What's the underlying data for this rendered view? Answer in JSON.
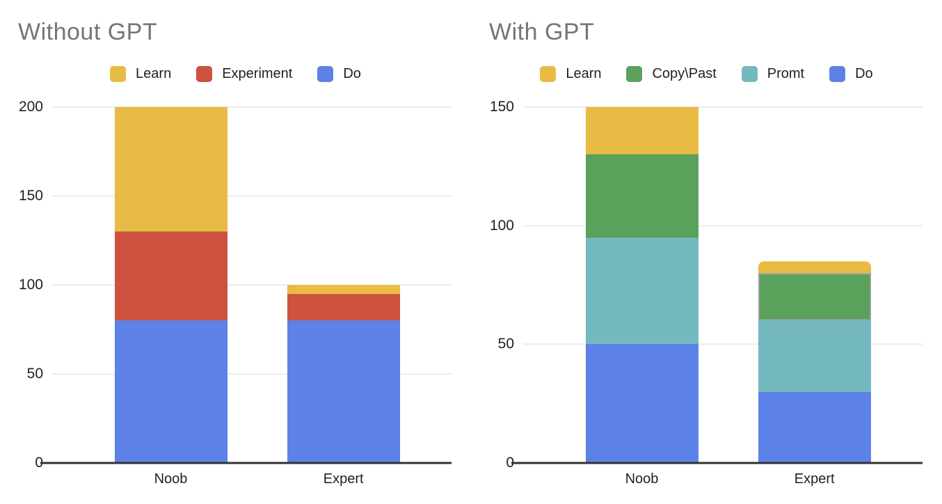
{
  "chart_data": [
    {
      "type": "bar",
      "variant": "stacked",
      "title": "Without GPT",
      "categories": [
        "Noob",
        "Expert"
      ],
      "series": [
        {
          "name": "Learn",
          "color": "#E8BB44",
          "values": [
            70,
            5
          ]
        },
        {
          "name": "Experiment",
          "color": "#CD5240",
          "values": [
            50,
            15
          ]
        },
        {
          "name": "Do",
          "color": "#5C82E8",
          "values": [
            80,
            80
          ]
        }
      ],
      "stack_order_bottom_to_top": [
        "Do",
        "Experiment",
        "Learn"
      ],
      "totals": [
        200,
        100
      ],
      "ylim": [
        0,
        200
      ],
      "yticks": [
        0,
        50,
        100,
        150,
        200
      ],
      "xlabel": "",
      "ylabel": "",
      "grid": true,
      "legend_position": "top",
      "title_color": "#757575",
      "gridline_color": "#d9d9d9",
      "axis_line_color": "#333333"
    },
    {
      "type": "bar",
      "variant": "stacked",
      "title": "With GPT",
      "categories": [
        "Noob",
        "Expert"
      ],
      "series": [
        {
          "name": "Learn",
          "color": "#E8BB44",
          "values": [
            20,
            5
          ]
        },
        {
          "name": "Copy\\Past",
          "color": "#5AA25C",
          "values": [
            35,
            20
          ]
        },
        {
          "name": "Promt",
          "color": "#74B9BF",
          "values": [
            45,
            30
          ]
        },
        {
          "name": "Do",
          "color": "#5C82E8",
          "values": [
            50,
            30
          ]
        }
      ],
      "stack_order_bottom_to_top": [
        "Do",
        "Promt",
        "Copy\\Past",
        "Learn"
      ],
      "totals": [
        150,
        85
      ],
      "ylim": [
        0,
        150
      ],
      "yticks": [
        0,
        50,
        100,
        150
      ],
      "xlabel": "",
      "ylabel": "",
      "grid": true,
      "legend_position": "top",
      "title_color": "#757575",
      "gridline_color": "#d9d9d9",
      "axis_line_color": "#333333",
      "selected_segment": {
        "category": "Expert",
        "series": "Copy\\Past",
        "outline_color": "#9AA0A6"
      },
      "rounded_top_segment": {
        "category": "Expert",
        "series": "Learn"
      }
    }
  ]
}
